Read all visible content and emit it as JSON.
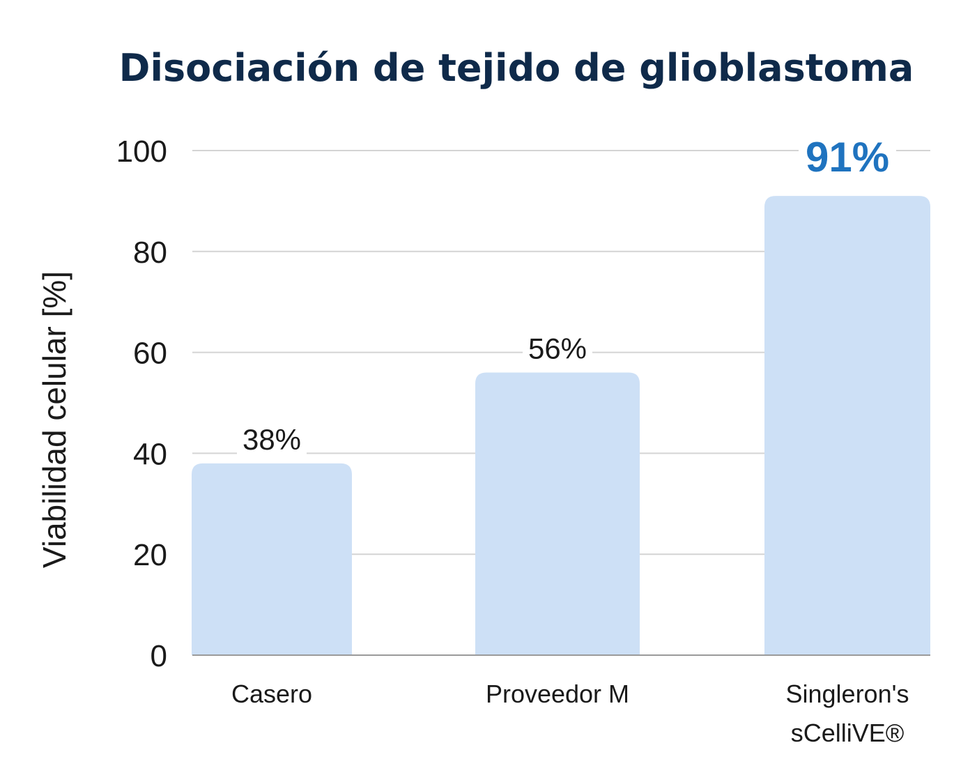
{
  "chart_data": {
    "type": "bar",
    "title": "Disociación de tejido de glioblastoma",
    "ylabel": "Viabilidad celular [%]",
    "xlabel": "",
    "ylim": [
      0,
      100
    ],
    "yticks": [
      0,
      20,
      40,
      60,
      80,
      100
    ],
    "categories": [
      [
        "Casero"
      ],
      [
        "Proveedor M"
      ],
      [
        "Singleron's",
        "sCelliVE®"
      ]
    ],
    "values": [
      38,
      56,
      91
    ],
    "data_labels": [
      "38%",
      "56%",
      "91%"
    ],
    "highlight_index": 2,
    "grid": true,
    "colors": {
      "bar": "#cde0f6",
      "title": "#0f2a4a",
      "highlight": "#1f73bf",
      "text": "#1a1a1a",
      "grid": "#d4d4d4",
      "axis": "#9a9a9a"
    }
  }
}
